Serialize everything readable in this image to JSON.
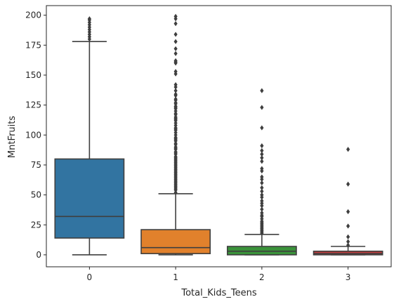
{
  "chart_data": {
    "type": "box",
    "xlabel": "Total_Kids_Teens",
    "ylabel": "MntFruits",
    "ylim": [
      -10,
      208
    ],
    "yticks": [
      0,
      25,
      50,
      75,
      100,
      125,
      150,
      175,
      200
    ],
    "grid": false,
    "categories": [
      "0",
      "1",
      "2",
      "3"
    ],
    "boxes": [
      {
        "category": "0",
        "color": "#3274a1",
        "whisker_low": 0,
        "q1": 14,
        "median": 32,
        "q3": 80,
        "whisker_high": 178,
        "outliers": [
          180,
          182,
          184,
          186,
          188,
          190,
          192,
          194,
          196,
          197
        ]
      },
      {
        "category": "1",
        "color": "#e1812c",
        "whisker_low": 0,
        "q1": 1,
        "median": 6,
        "q3": 21,
        "whisker_high": 51,
        "outliers": [
          52,
          54,
          55,
          56,
          57,
          58,
          59,
          60,
          61,
          62,
          63,
          64,
          65,
          66,
          67,
          68,
          69,
          70,
          71,
          72,
          73,
          74,
          75,
          76,
          77,
          78,
          79,
          80,
          81,
          82,
          84,
          85,
          86,
          88,
          89,
          90,
          92,
          93,
          95,
          96,
          97,
          98,
          100,
          102,
          104,
          105,
          106,
          108,
          110,
          112,
          113,
          114,
          115,
          117,
          118,
          120,
          122,
          123,
          124,
          126,
          127,
          129,
          130,
          133,
          134,
          137,
          140,
          142,
          151,
          153,
          160,
          161,
          162,
          168,
          172,
          178,
          184,
          193,
          197,
          199
        ]
      },
      {
        "category": "2",
        "color": "#3a923a",
        "whisker_low": 0,
        "q1": 0,
        "median": 3,
        "q3": 7,
        "whisker_high": 17,
        "outliers": [
          18,
          19,
          20,
          21,
          22,
          23,
          24,
          25,
          26,
          27,
          28,
          30,
          32,
          33,
          35,
          38,
          41,
          43,
          45,
          48,
          50,
          53,
          56,
          60,
          63,
          65,
          70,
          72,
          78,
          81,
          84,
          87,
          91,
          106,
          123,
          137
        ]
      },
      {
        "category": "3",
        "color": "#c03d3e",
        "whisker_low": 0,
        "q1": 0,
        "median": 1,
        "q3": 3,
        "whisker_high": 7,
        "outliers": [
          8,
          11,
          15,
          24,
          36,
          59,
          88
        ]
      }
    ]
  }
}
